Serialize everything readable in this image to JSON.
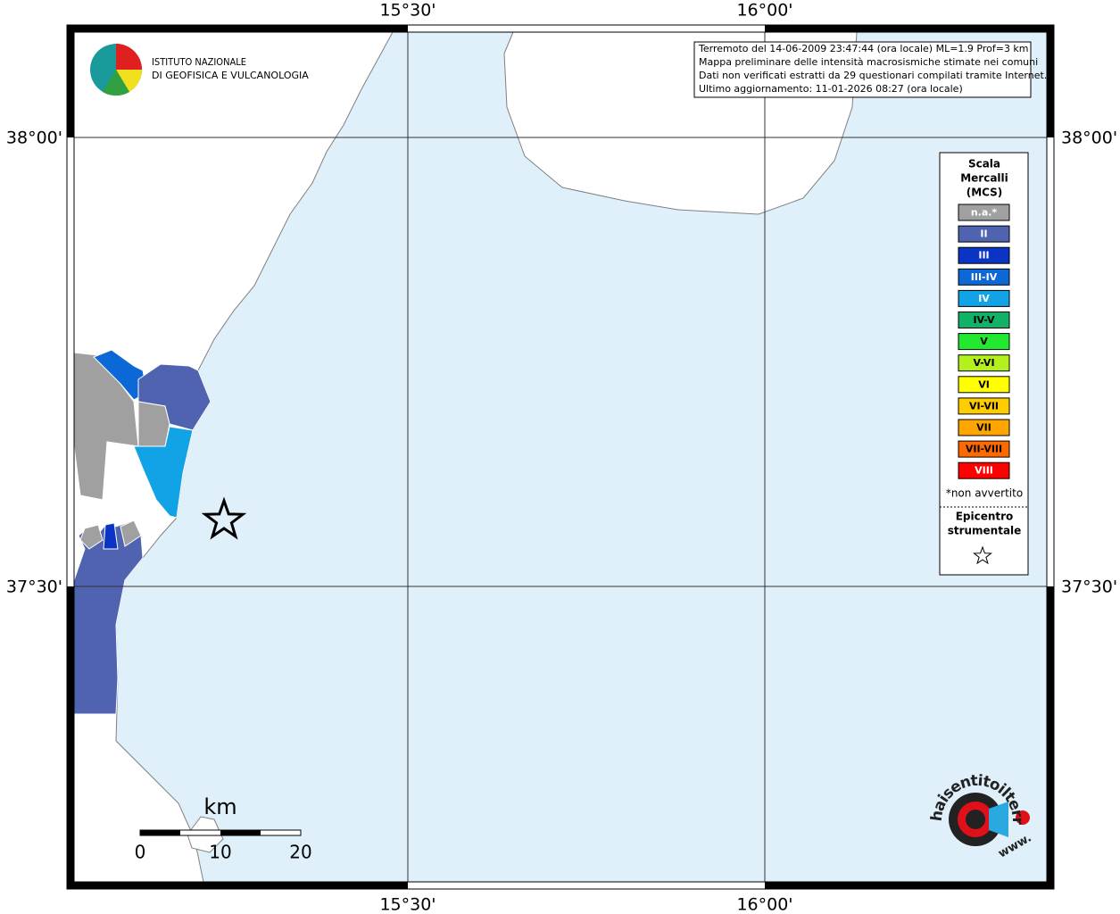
{
  "map": {
    "graticule": {
      "lon_labels": [
        "15°30'",
        "16°00'"
      ],
      "lat_labels": [
        "38°00'",
        "37°30'"
      ]
    },
    "info": {
      "lines": [
        "Terremoto del 14-06-2009 23:47:44 (ora locale) ML=1.9 Prof=3 km",
        "Mappa preliminare delle intensità macrosismiche stimate nei comuni",
        "Dati non verificati estratti da 29 questionari compilati tramite Internet.",
        "Ultimo aggiornamento: 11-01-2026 08:27 (ora locale)"
      ]
    },
    "ingv_logo": {
      "lines": [
        "ISTITUTO NAZIONALE",
        "DI GEOFISICA E VULCANOLOGIA"
      ]
    },
    "legend": {
      "title_lines": [
        "Scala",
        "Mercalli",
        "(MCS)"
      ],
      "entries": [
        {
          "label": "n.a.*",
          "color": "#a0a0a0",
          "text_color": "#ffffff"
        },
        {
          "label": "II",
          "color": "#4f63b0",
          "text_color": "#ffffff"
        },
        {
          "label": "III",
          "color": "#0a35c4",
          "text_color": "#ffffff"
        },
        {
          "label": "III-IV",
          "color": "#0b68d6",
          "text_color": "#ffffff"
        },
        {
          "label": "IV",
          "color": "#12a2e6",
          "text_color": "#ffffff"
        },
        {
          "label": "IV-V",
          "color": "#12b266",
          "text_color": "#000000"
        },
        {
          "label": "V",
          "color": "#22e830",
          "text_color": "#000000"
        },
        {
          "label": "V-VI",
          "color": "#b4f020",
          "text_color": "#000000"
        },
        {
          "label": "VI",
          "color": "#ffff00",
          "text_color": "#000000"
        },
        {
          "label": "VI-VII",
          "color": "#ffcc00",
          "text_color": "#000000"
        },
        {
          "label": "VII",
          "color": "#ffa500",
          "text_color": "#000000"
        },
        {
          "label": "VII-VIII",
          "color": "#ff6a00",
          "text_color": "#000000"
        },
        {
          "label": "VIII",
          "color": "#ff0000",
          "text_color": "#ffffff"
        }
      ],
      "footnote": "*non avvertito",
      "epicenter_lines": [
        "Epicentro",
        "strumentale"
      ]
    },
    "scale_bar": {
      "unit": "km",
      "labels": [
        "0",
        "10",
        "20"
      ]
    },
    "site_logo": {
      "text": "haisentitoilterremoto.it",
      "prefix": "www."
    }
  }
}
